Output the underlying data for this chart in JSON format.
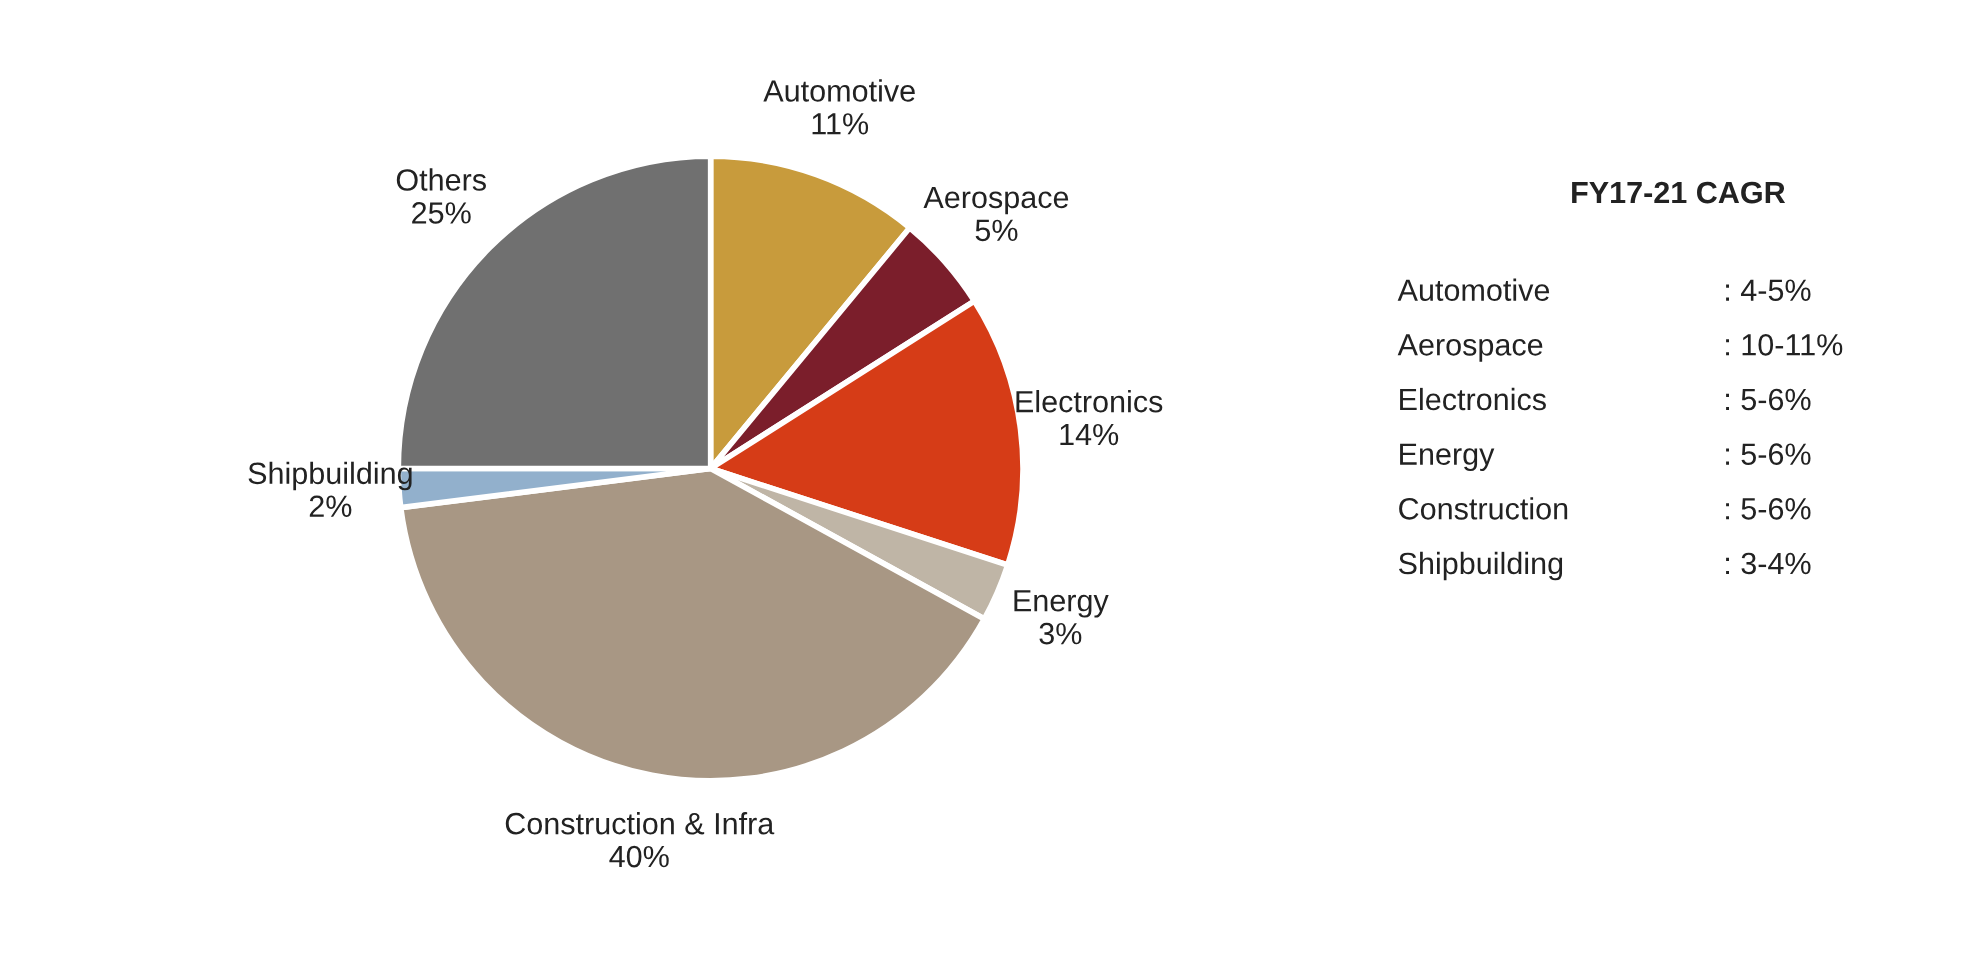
{
  "chart_data": {
    "type": "pie",
    "categories": [
      "Automotive",
      "Aerospace",
      "Electronics",
      "Energy",
      "Construction & Infra",
      "Shipbuilding",
      "Others"
    ],
    "values": [
      11,
      5,
      14,
      3,
      40,
      2,
      25
    ],
    "value_labels": [
      "11%",
      "5%",
      "14%",
      "3%",
      "40%",
      "2%",
      "25%"
    ],
    "colors": [
      "#c89b3c",
      "#7b1e2b",
      "#d63c17",
      "#bfb5a6",
      "#a89784",
      "#92b0cc",
      "#707070"
    ],
    "annotations": [
      "FY17-21 CAGR",
      "Automotive",
      ": 4-5%",
      "Aerospace",
      ": 10-11%",
      "Electronics",
      ": 5-6%",
      "Energy",
      ": 5-6%",
      "Construction",
      ": 5-6%",
      "Shipbuilding",
      ": 3-4%"
    ]
  }
}
